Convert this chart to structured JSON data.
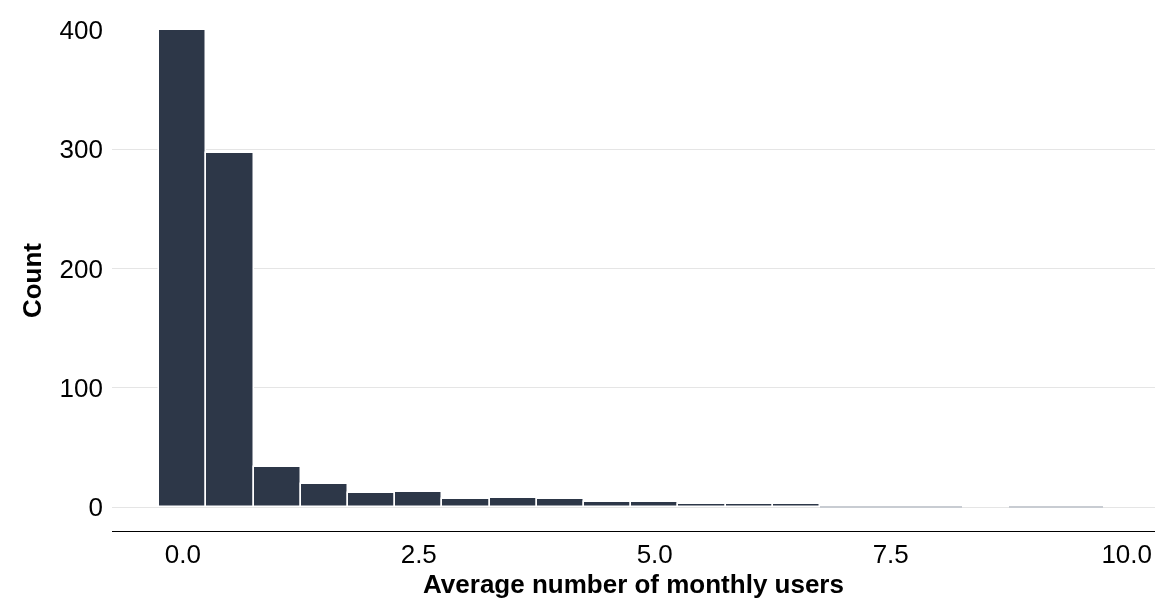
{
  "chart_data": {
    "type": "histogram",
    "xlabel": "Average number of monthly users",
    "ylabel": "Count",
    "bins": [
      -0.25,
      0.25,
      0.75,
      1.25,
      1.75,
      2.25,
      2.75,
      3.25,
      3.75,
      4.25,
      4.75,
      5.25,
      5.75,
      6.25,
      6.75,
      7.25,
      7.75,
      8.25,
      8.75,
      9.25,
      9.75
    ],
    "values": [
      400,
      297,
      34,
      19,
      12,
      13,
      7,
      8,
      7,
      4,
      4,
      3,
      3,
      3,
      1,
      1,
      1,
      0,
      1,
      1
    ],
    "colors": [
      "#2d3748",
      "#2d3748",
      "#2d3748",
      "#2d3748",
      "#2d3748",
      "#2d3748",
      "#2d3748",
      "#2d3748",
      "#2d3748",
      "#2d3748",
      "#2d3748",
      "#2d3748",
      "#2d3748",
      "#2d3748",
      "#c8ccd2",
      "#c8ccd2",
      "#c8ccd2",
      "#c8ccd2",
      "#c8ccd2",
      "#c8ccd2"
    ],
    "xlim": [
      -0.75,
      10.3
    ],
    "xticks": [
      {
        "value": 0,
        "label": "0.0"
      },
      {
        "value": 2.5,
        "label": "2.5"
      },
      {
        "value": 5,
        "label": "5.0"
      },
      {
        "value": 7.5,
        "label": "7.5"
      },
      {
        "value": 10,
        "label": "10.0"
      }
    ],
    "ylim": [
      -20,
      400
    ],
    "yticks": [
      0,
      100,
      200,
      300,
      400
    ],
    "grid": "y"
  }
}
